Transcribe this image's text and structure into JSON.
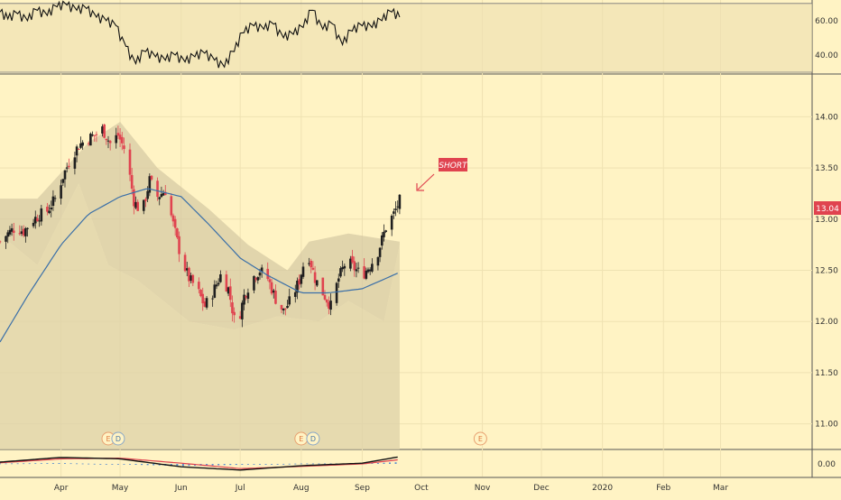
{
  "colors": {
    "background": "#fff3c4",
    "up": "#1f1f1f",
    "down": "#e0434f",
    "ma": "#3a6fa8",
    "band": "#d4c8a2",
    "grid": "#efe2b2",
    "annotation": "#e0434f",
    "macd_line": "#111111",
    "signal_line": "#e0434f",
    "histogram": "#5b8fcf"
  },
  "annotation": {
    "label": "SHORT",
    "icon": "arrow-down-left-icon"
  },
  "price_badge": "13.04",
  "events": [
    {
      "label": "E",
      "date": "2019-04-25"
    },
    {
      "label": "D",
      "date": "2019-04-30"
    },
    {
      "label": "E",
      "date": "2019-08-01"
    },
    {
      "label": "D",
      "date": "2019-08-07"
    },
    {
      "label": "E",
      "date": "2019-10-31"
    }
  ],
  "chart_data": [
    {
      "type": "line",
      "panel": "oscillator",
      "y_ticks": [
        "60.00",
        "40.00"
      ],
      "ylim": [
        30,
        72
      ],
      "levels": [
        70,
        30
      ],
      "series": [
        {
          "x": [
            "2019-03-01",
            "2019-03-05",
            "2019-03-10",
            "2019-03-15",
            "2019-03-20",
            "2019-03-25",
            "2019-03-30",
            "2019-04-04",
            "2019-04-09",
            "2019-04-14",
            "2019-04-19",
            "2019-04-24",
            "2019-04-29",
            "2019-05-04",
            "2019-05-09",
            "2019-05-14",
            "2019-05-19",
            "2019-05-24",
            "2019-05-29",
            "2019-06-03",
            "2019-06-08",
            "2019-06-13",
            "2019-06-18",
            "2019-06-23",
            "2019-06-28",
            "2019-07-03",
            "2019-07-08",
            "2019-07-13",
            "2019-07-18",
            "2019-07-23",
            "2019-07-28",
            "2019-08-02",
            "2019-08-07",
            "2019-08-12",
            "2019-08-17",
            "2019-08-22",
            "2019-08-27",
            "2019-09-01",
            "2019-09-06",
            "2019-09-11",
            "2019-09-16",
            "2019-09-20"
          ],
          "values": [
            65,
            61,
            64,
            60,
            66,
            63,
            68,
            69,
            66,
            67,
            62,
            60,
            57,
            45,
            35,
            42,
            39,
            37,
            40,
            36,
            39,
            41,
            37,
            33,
            42,
            53,
            57,
            55,
            58,
            50,
            52,
            56,
            66,
            55,
            58,
            46,
            54,
            57,
            56,
            60,
            65,
            62
          ]
        }
      ]
    },
    {
      "type": "candlestick",
      "panel": "price",
      "y_ticks": [
        "14.00",
        "13.50",
        "13.00",
        "12.50",
        "12.00",
        "11.50",
        "11.00"
      ],
      "ylim": [
        10.75,
        14.4
      ],
      "x_ticks": [
        "Apr",
        "May",
        "Jun",
        "Jul",
        "Aug",
        "Sep",
        "Oct",
        "Nov",
        "Dec",
        "2020",
        "Feb",
        "Mar"
      ],
      "xlim": [
        "2019-03-01",
        "2020-03-31"
      ],
      "close_path": [
        "2019-03-01",
        12.78,
        "2019-03-05",
        12.86,
        "2019-03-09",
        12.92,
        "2019-03-13",
        12.88,
        "2019-03-17",
        12.98,
        "2019-03-21",
        13.04,
        "2019-03-25",
        13.08,
        "2019-03-29",
        13.2,
        "2019-04-02",
        13.42,
        "2019-04-06",
        13.6,
        "2019-04-10",
        13.72,
        "2019-04-14",
        13.78,
        "2019-04-18",
        13.82,
        "2019-04-22",
        13.88,
        "2019-04-26",
        13.74,
        "2019-04-30",
        13.82,
        "2019-05-04",
        13.65,
        "2019-05-08",
        13.18,
        "2019-05-12",
        13.05,
        "2019-05-16",
        13.38,
        "2019-05-20",
        13.22,
        "2019-05-24",
        13.28,
        "2019-05-28",
        12.95,
        "2019-06-01",
        12.62,
        "2019-06-05",
        12.42,
        "2019-06-09",
        12.32,
        "2019-06-13",
        12.15,
        "2019-06-17",
        12.28,
        "2019-06-21",
        12.45,
        "2019-06-25",
        12.32,
        "2019-06-29",
        11.92,
        "2019-07-03",
        12.25,
        "2019-07-07",
        12.42,
        "2019-07-11",
        12.5,
        "2019-07-15",
        12.42,
        "2019-07-19",
        12.22,
        "2019-07-23",
        12.1,
        "2019-07-27",
        12.22,
        "2019-07-31",
        12.4,
        "2019-08-04",
        12.7,
        "2019-08-08",
        12.42,
        "2019-08-12",
        12.28,
        "2019-08-16",
        12.15,
        "2019-08-20",
        12.42,
        "2019-08-24",
        12.6,
        "2019-08-28",
        12.52,
        "2019-09-01",
        12.45,
        "2019-09-05",
        12.55,
        "2019-09-09",
        12.68,
        "2019-09-13",
        12.92,
        "2019-09-17",
        13.05,
        "2019-09-20",
        13.18
      ],
      "ma_path": [
        "2019-03-01",
        11.8,
        "2019-03-15",
        12.25,
        "2019-04-01",
        12.75,
        "2019-04-15",
        13.05,
        "2019-05-01",
        13.22,
        "2019-05-15",
        13.3,
        "2019-06-01",
        13.22,
        "2019-06-15",
        12.95,
        "2019-07-01",
        12.62,
        "2019-07-15",
        12.45,
        "2019-08-01",
        12.28,
        "2019-08-15",
        12.28,
        "2019-09-01",
        12.32,
        "2019-09-20",
        12.48
      ],
      "band_upper": [
        "2019-03-01",
        13.2,
        "2019-03-20",
        13.2,
        "2019-04-15",
        13.75,
        "2019-05-01",
        13.95,
        "2019-05-20",
        13.5,
        "2019-06-15",
        13.1,
        "2019-07-05",
        12.75,
        "2019-07-25",
        12.5,
        "2019-08-05",
        12.78,
        "2019-08-25",
        12.86,
        "2019-09-20",
        12.78
      ],
      "band_lower": [
        "2019-03-01",
        12.85,
        "2019-03-20",
        12.55,
        "2019-04-10",
        13.35,
        "2019-04-25",
        12.55,
        "2019-05-10",
        12.4,
        "2019-06-05",
        12.0,
        "2019-06-28",
        11.92,
        "2019-07-20",
        12.05,
        "2019-08-10",
        12.0,
        "2019-08-25",
        12.2,
        "2019-09-12",
        12.0,
        "2019-09-20",
        12.75
      ],
      "last_price": 13.04
    },
    {
      "type": "line",
      "panel": "macd",
      "y_ticks": [
        "0.00"
      ],
      "ylim": [
        -0.35,
        0.35
      ],
      "series": [
        {
          "name": "macd",
          "x": [
            "2019-03-01",
            "2019-04-01",
            "2019-05-01",
            "2019-06-01",
            "2019-07-01",
            "2019-08-01",
            "2019-09-01",
            "2019-09-20"
          ],
          "values": [
            0.05,
            0.18,
            0.14,
            -0.08,
            -0.17,
            -0.05,
            0.02,
            0.2
          ]
        },
        {
          "name": "signal",
          "x": [
            "2019-03-01",
            "2019-04-01",
            "2019-05-01",
            "2019-06-01",
            "2019-07-01",
            "2019-08-01",
            "2019-09-01",
            "2019-09-20"
          ],
          "values": [
            0.03,
            0.14,
            0.16,
            0.02,
            -0.13,
            -0.07,
            0.0,
            0.12
          ]
        }
      ]
    }
  ]
}
